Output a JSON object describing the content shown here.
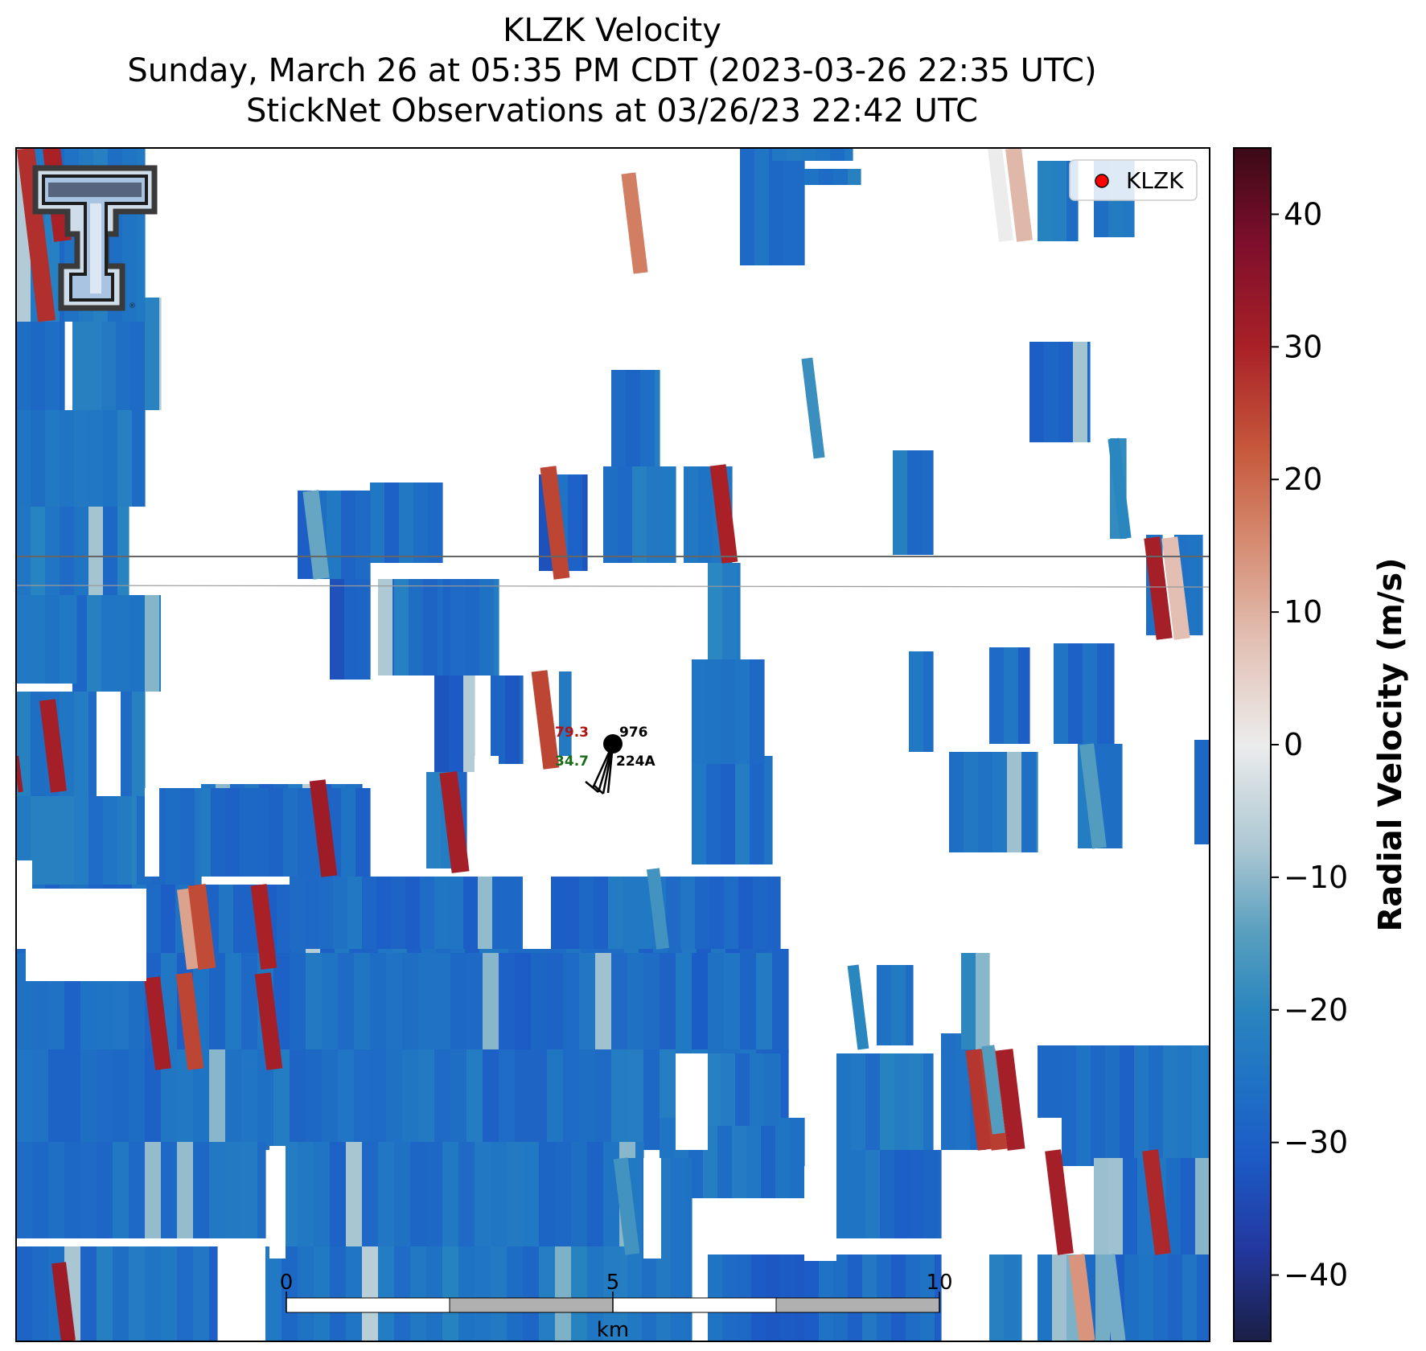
{
  "title_lines": [
    "KLZK Velocity",
    "Sunday, March 26 at 05:35 PM CDT (2023-03-26 22:35 UTC)",
    "StickNet Observations at 03/26/23 22:42 UTC"
  ],
  "legend": {
    "label": "KLZK",
    "marker_color": "#ff0000"
  },
  "colorbar": {
    "label": "Radial Velocity (m/s)",
    "range": [
      -45,
      45
    ],
    "ticks": [
      40,
      30,
      20,
      10,
      0,
      -10,
      -20,
      -30,
      -40
    ],
    "tick_labels": [
      "40",
      "30",
      "20",
      "10",
      "0",
      "−10",
      "−20",
      "−30",
      "−40"
    ],
    "colormap": [
      [
        -45,
        "#1a1f45"
      ],
      [
        -38,
        "#2338a0"
      ],
      [
        -31,
        "#1c5cc6"
      ],
      [
        -25,
        "#1f74c4"
      ],
      [
        -20,
        "#2a86bf"
      ],
      [
        -14,
        "#5aa0bf"
      ],
      [
        -8,
        "#a9c6d2"
      ],
      [
        0,
        "#ececec"
      ],
      [
        8,
        "#e2bfb2"
      ],
      [
        15,
        "#d68d73"
      ],
      [
        22,
        "#c75a3c"
      ],
      [
        30,
        "#a92127"
      ],
      [
        38,
        "#7d0e2c"
      ],
      [
        45,
        "#3b0a16"
      ]
    ]
  },
  "scale_bar": {
    "labels": [
      "0",
      "5",
      "10"
    ],
    "unit": "km"
  },
  "station": {
    "temperature": "79.3",
    "dewpoint": "34.7",
    "pressure": "976",
    "id": "224A"
  },
  "logo": {
    "name": "texas-tech-double-t-logo"
  },
  "chart_data": {
    "type": "heatmap",
    "title": "KLZK Velocity",
    "subtitle": "Sunday, March 26 at 05:35 PM CDT (2023-03-26 22:35 UTC) / StickNet Observations at 03/26/23 22:42 UTC",
    "variable": "Radial Velocity (m/s)",
    "zlim": [
      -45,
      45
    ],
    "grid": false,
    "legend_position": "top-right",
    "legend_entries": [
      "KLZK"
    ],
    "scale_km": [
      0,
      5,
      10
    ],
    "note": "Radial velocity field dominated by inbound values (about -20 to -30 m/s) with scattered outbound streaks (about +20 to +30 m/s)."
  }
}
